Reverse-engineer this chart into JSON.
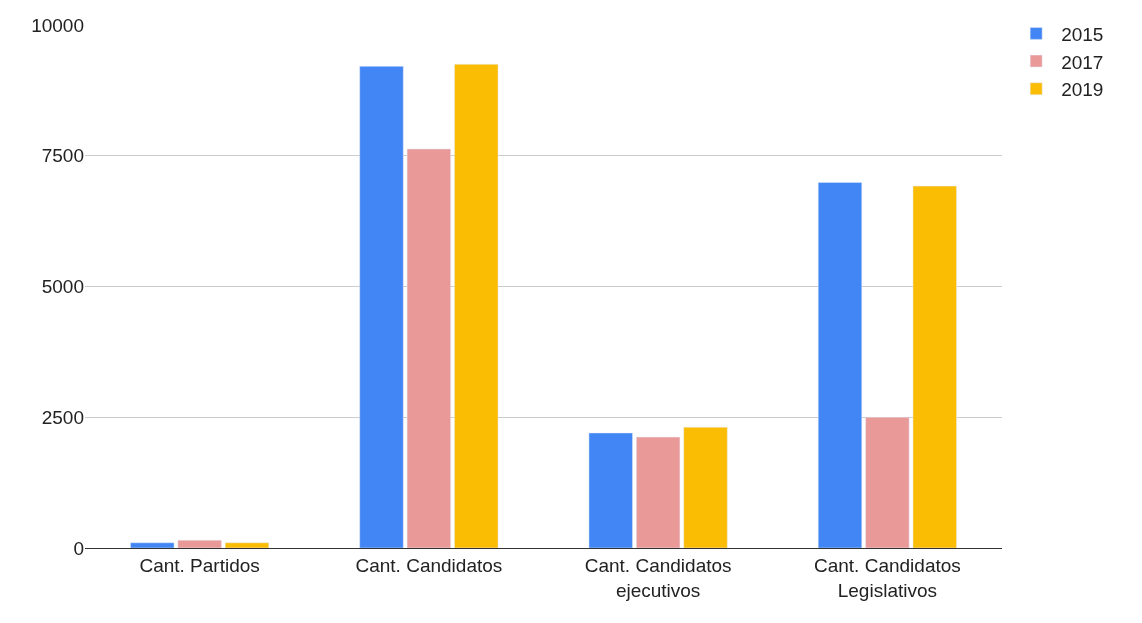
{
  "chart_data": {
    "type": "bar",
    "categories": [
      "Cant. Partidos",
      "Cant. Candidatos",
      "Cant. Candidatos\nejecutivos",
      "Cant. Candidatos\nLegislativos"
    ],
    "series": [
      {
        "name": "2015",
        "color": "#4285f4",
        "values": [
          100,
          9210,
          2200,
          6990
        ]
      },
      {
        "name": "2017",
        "color": "#ea9999",
        "values": [
          150,
          7630,
          2120,
          2500
        ]
      },
      {
        "name": "2019",
        "color": "#fbbc04",
        "values": [
          100,
          9250,
          2310,
          6920
        ]
      }
    ],
    "ylim": [
      0,
      10000
    ],
    "yticks": [
      0,
      2500,
      5000,
      7500,
      10000
    ],
    "grid": "y",
    "legend": "top right"
  }
}
